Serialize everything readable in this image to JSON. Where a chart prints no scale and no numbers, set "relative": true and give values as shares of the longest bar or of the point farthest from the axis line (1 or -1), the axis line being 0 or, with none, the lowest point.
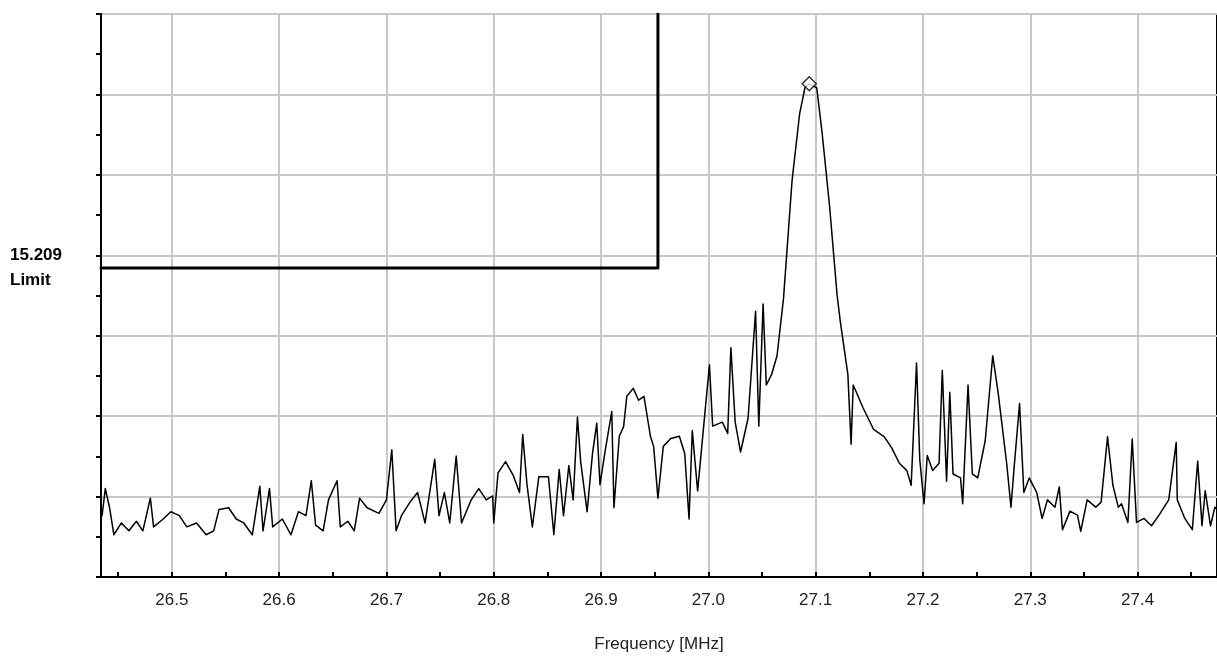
{
  "chart_data": {
    "type": "line",
    "xlabel": "Frequency [MHz]",
    "relative": true,
    "grid": true,
    "xlim": [
      26.434,
      27.474
    ],
    "xticks": [
      {
        "value": 26.45,
        "label": null
      },
      26.5,
      {
        "value": 26.55,
        "label": null
      },
      26.6,
      {
        "value": 26.65,
        "label": null
      },
      26.7,
      {
        "value": 26.75,
        "label": null
      },
      26.8,
      {
        "value": 26.85,
        "label": null
      },
      26.9,
      {
        "value": 26.95,
        "label": null
      },
      {
        "value": 27,
        "label": "27.0"
      },
      {
        "value": 27.05,
        "label": null
      },
      27.1,
      {
        "value": 27.15,
        "label": null
      },
      27.2,
      {
        "value": 27.25,
        "label": null
      },
      27.3,
      {
        "value": 27.35,
        "label": null
      },
      27.4,
      {
        "value": 27.45,
        "label": null
      }
    ],
    "series": [
      {
        "color": "#000000",
        "marker": "none",
        "x": [
          26.435,
          26.438,
          26.442,
          26.446,
          26.453,
          26.46,
          26.467,
          26.473,
          26.48,
          26.483,
          26.492,
          26.499,
          26.507,
          26.514,
          26.523,
          26.532,
          26.539,
          26.544,
          26.553,
          26.56,
          26.567,
          26.575,
          26.582,
          26.585,
          26.591,
          26.594,
          26.603,
          26.611,
          26.618,
          26.625,
          26.63,
          26.634,
          26.641,
          26.646,
          26.654,
          26.657,
          26.664,
          26.67,
          26.675,
          26.682,
          26.693,
          26.7,
          26.705,
          26.709,
          26.714,
          26.722,
          26.729,
          26.736,
          26.745,
          26.749,
          26.754,
          26.759,
          26.765,
          26.77,
          26.779,
          26.786,
          26.793,
          26.799,
          26.8,
          26.804,
          26.811,
          26.818,
          26.824,
          26.827,
          26.831,
          26.836,
          26.842,
          26.851,
          26.856,
          26.861,
          26.865,
          26.87,
          26.874,
          26.878,
          26.881,
          26.887,
          26.892,
          26.896,
          26.899,
          26.904,
          26.91,
          26.912,
          26.917,
          26.921,
          26.924,
          26.93,
          26.935,
          26.94,
          26.946,
          26.949,
          26.953,
          26.958,
          26.965,
          26.973,
          26.978,
          26.982,
          26.985,
          26.99,
          26.995,
          27.001,
          27.004,
          27.013,
          27.018,
          27.021,
          27.025,
          27.03,
          27.037,
          27.044,
          27.047,
          27.051,
          27.054,
          27.059,
          27.064,
          27.07,
          27.078,
          27.085,
          27.09,
          27.094,
          27.101,
          27.106,
          27.113,
          27.12,
          27.123,
          27.13,
          27.133,
          27.135,
          27.144,
          27.154,
          27.164,
          27.171,
          27.178,
          27.185,
          27.189,
          27.194,
          27.197,
          27.201,
          27.204,
          27.209,
          27.215,
          27.218,
          27.222,
          27.225,
          27.228,
          27.235,
          27.237,
          27.242,
          27.246,
          27.251,
          27.258,
          27.265,
          27.27,
          27.278,
          27.282,
          27.285,
          27.29,
          27.294,
          27.299,
          27.306,
          27.311,
          27.316,
          27.323,
          27.327,
          27.33,
          27.337,
          27.344,
          27.347,
          27.353,
          27.361,
          27.366,
          27.372,
          27.377,
          27.382,
          27.385,
          27.391,
          27.395,
          27.399,
          27.406,
          27.413,
          27.42,
          27.429,
          27.436,
          27.437,
          27.444,
          27.451,
          27.456,
          27.46,
          27.463,
          27.468,
          27.472,
          27.474
        ],
        "values": [
          0.109,
          0.157,
          0.123,
          0.075,
          0.096,
          0.082,
          0.099,
          0.082,
          0.14,
          0.089,
          0.103,
          0.116,
          0.109,
          0.089,
          0.096,
          0.075,
          0.082,
          0.12,
          0.123,
          0.103,
          0.096,
          0.075,
          0.161,
          0.082,
          0.157,
          0.089,
          0.103,
          0.075,
          0.116,
          0.109,
          0.171,
          0.092,
          0.082,
          0.137,
          0.171,
          0.089,
          0.099,
          0.082,
          0.14,
          0.123,
          0.113,
          0.137,
          0.226,
          0.082,
          0.109,
          0.133,
          0.15,
          0.096,
          0.209,
          0.109,
          0.15,
          0.096,
          0.215,
          0.096,
          0.137,
          0.157,
          0.137,
          0.144,
          0.096,
          0.185,
          0.205,
          0.181,
          0.15,
          0.253,
          0.164,
          0.089,
          0.178,
          0.178,
          0.075,
          0.191,
          0.109,
          0.198,
          0.137,
          0.284,
          0.205,
          0.116,
          0.219,
          0.273,
          0.164,
          0.226,
          0.294,
          0.123,
          0.25,
          0.267,
          0.321,
          0.335,
          0.314,
          0.321,
          0.25,
          0.232,
          0.14,
          0.232,
          0.246,
          0.25,
          0.219,
          0.103,
          0.26,
          0.153,
          0.255,
          0.377,
          0.268,
          0.275,
          0.255,
          0.407,
          0.275,
          0.222,
          0.282,
          0.472,
          0.268,
          0.485,
          0.341,
          0.36,
          0.393,
          0.494,
          0.704,
          0.822,
          0.869,
          0.876,
          0.869,
          0.789,
          0.658,
          0.5,
          0.453,
          0.36,
          0.236,
          0.341,
          0.301,
          0.262,
          0.249,
          0.229,
          0.202,
          0.189,
          0.163,
          0.38,
          0.209,
          0.13,
          0.216,
          0.189,
          0.202,
          0.367,
          0.17,
          0.328,
          0.183,
          0.176,
          0.13,
          0.341,
          0.183,
          0.176,
          0.242,
          0.393,
          0.328,
          0.202,
          0.124,
          0.196,
          0.308,
          0.15,
          0.176,
          0.15,
          0.104,
          0.137,
          0.124,
          0.16,
          0.084,
          0.117,
          0.11,
          0.081,
          0.137,
          0.124,
          0.133,
          0.249,
          0.163,
          0.124,
          0.13,
          0.097,
          0.245,
          0.097,
          0.104,
          0.091,
          0.11,
          0.137,
          0.239,
          0.137,
          0.104,
          0.084,
          0.206,
          0.091,
          0.153,
          0.091,
          0.124,
          0.12
        ]
      },
      {
        "type": "line",
        "name": "15.209 Limit",
        "color": "#000000",
        "marker": "none",
        "x": [
          26.434,
          26.953,
          26.953
        ],
        "values": [
          0.549,
          0.549,
          1
        ]
      },
      {
        "type": "scatter",
        "color": "#000000",
        "marker": "diamond",
        "x": [
          27.094
        ],
        "values": [
          0.876
        ]
      }
    ]
  }
}
